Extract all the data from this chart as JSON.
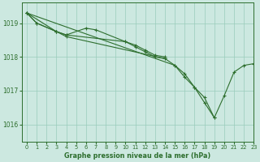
{
  "bg_color": "#cce8e0",
  "grid_color": "#99ccbb",
  "line_color": "#2d6e2d",
  "marker_color": "#2d6e2d",
  "title": "Graphe pression niveau de la mer (hPa)",
  "xlim": [
    -0.5,
    23
  ],
  "ylim": [
    1015.5,
    1019.6
  ],
  "yticks": [
    1016,
    1017,
    1018,
    1019
  ],
  "xtick_labels": [
    "0",
    "1",
    "2",
    "3",
    "4",
    "5",
    "6",
    "7",
    "8",
    "9",
    "10",
    "11",
    "12",
    "13",
    "14",
    "15",
    "16",
    "17",
    "18",
    "19",
    "20",
    "21",
    "22",
    "23"
  ],
  "xtick_pos": [
    0,
    1,
    2,
    3,
    4,
    5,
    6,
    7,
    8,
    9,
    10,
    11,
    12,
    13,
    14,
    15,
    16,
    17,
    18,
    19,
    20,
    21,
    22,
    23
  ],
  "series": [
    {
      "x": [
        0,
        1,
        3,
        4,
        6,
        7,
        10,
        11,
        12,
        13,
        14
      ],
      "y": [
        1019.3,
        1019.0,
        1018.75,
        1018.65,
        1018.85,
        1018.8,
        1018.45,
        1018.35,
        1018.2,
        1018.05,
        1018.0
      ]
    },
    {
      "x": [
        0,
        1,
        3,
        4,
        10,
        11,
        12,
        13,
        14
      ],
      "y": [
        1019.3,
        1019.0,
        1018.75,
        1018.65,
        1018.45,
        1018.3,
        1018.15,
        1018.0,
        1017.95
      ]
    },
    {
      "x": [
        0,
        3,
        4,
        14,
        15,
        16,
        17,
        18,
        19
      ],
      "y": [
        1019.3,
        1018.75,
        1018.6,
        1017.95,
        1017.75,
        1017.4,
        1017.1,
        1016.65,
        1016.2
      ]
    },
    {
      "x": [
        0,
        15,
        16,
        17,
        18,
        19,
        20,
        21,
        22,
        23
      ],
      "y": [
        1019.3,
        1017.75,
        1017.5,
        1017.1,
        1016.8,
        1016.2,
        1016.85,
        1017.55,
        1017.75,
        1017.8
      ]
    }
  ]
}
